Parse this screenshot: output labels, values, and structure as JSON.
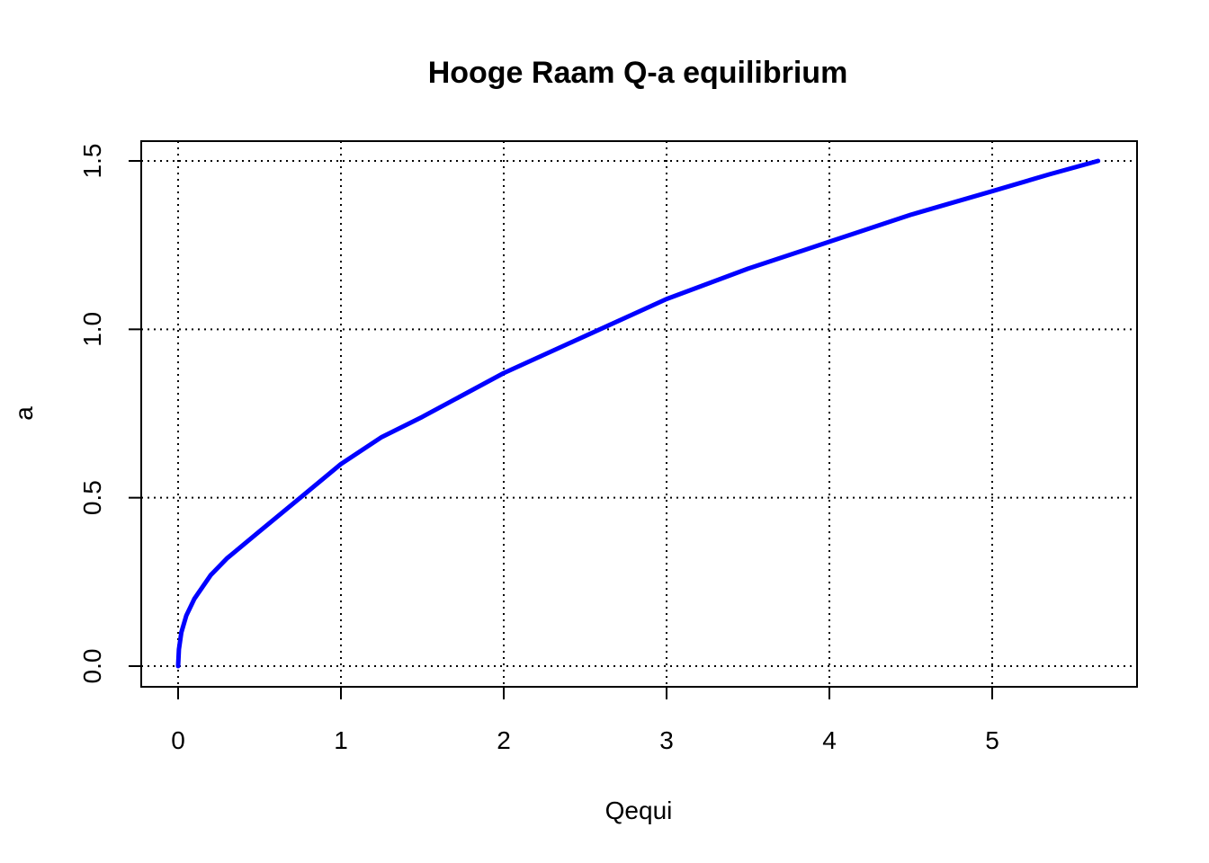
{
  "chart_data": {
    "type": "line",
    "title": "Hooge Raam Q-a equilibrium",
    "xlabel": "Qequi",
    "ylabel": "a",
    "xlim": [
      0,
      5.65
    ],
    "ylim": [
      0,
      1.5
    ],
    "xticks": [
      "0",
      "1",
      "2",
      "3",
      "4",
      "5"
    ],
    "yticks": [
      "0.0",
      "0.5",
      "1.0",
      "1.5"
    ],
    "grid": true,
    "series": [
      {
        "color": "#0000ff",
        "x": [
          0,
          0.005,
          0.02,
          0.05,
          0.1,
          0.2,
          0.3,
          0.5,
          0.75,
          1.0,
          1.25,
          1.5,
          2.0,
          2.5,
          3.0,
          3.5,
          4.0,
          4.5,
          5.0,
          5.35,
          5.65
        ],
        "y": [
          0,
          0.05,
          0.1,
          0.15,
          0.2,
          0.27,
          0.32,
          0.4,
          0.5,
          0.6,
          0.68,
          0.74,
          0.87,
          0.98,
          1.09,
          1.18,
          1.26,
          1.34,
          1.41,
          1.46,
          1.5
        ]
      }
    ]
  }
}
